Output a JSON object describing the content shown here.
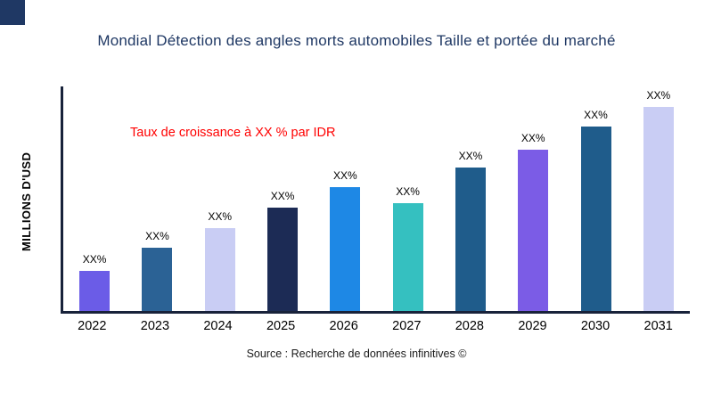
{
  "title": "Mondial Détection des angles morts automobiles Taille et portée du marché",
  "annotation": "Taux de croissance à XX % par IDR",
  "source": "Source : Recherche de données infinitives ©",
  "accent_color": "#1F3864",
  "annotation_color": "#FF0000",
  "chart_data": {
    "type": "bar",
    "title": "Mondial Détection des angles morts automobiles Taille et portée du marché",
    "xlabel": "",
    "ylabel": "MILLIONS D'USD",
    "ylim": [
      0,
      100
    ],
    "grid": false,
    "legend": false,
    "categories": [
      "2022",
      "2023",
      "2024",
      "2025",
      "2026",
      "2027",
      "2028",
      "2029",
      "2030",
      "2031"
    ],
    "values": [
      18,
      28,
      37,
      46,
      55,
      48,
      64,
      72,
      82,
      91
    ],
    "bar_labels": [
      "XX%",
      "XX%",
      "XX%",
      "XX%",
      "XX%",
      "XX%",
      "XX%",
      "XX%",
      "XX%",
      "XX%"
    ],
    "colors": [
      "#6B5CE7",
      "#2B6295",
      "#C9CDF4",
      "#1C2B55",
      "#1E88E5",
      "#35C0C0",
      "#1F5C8B",
      "#7B5CE6",
      "#1F5C8B",
      "#C9CDF4"
    ]
  }
}
